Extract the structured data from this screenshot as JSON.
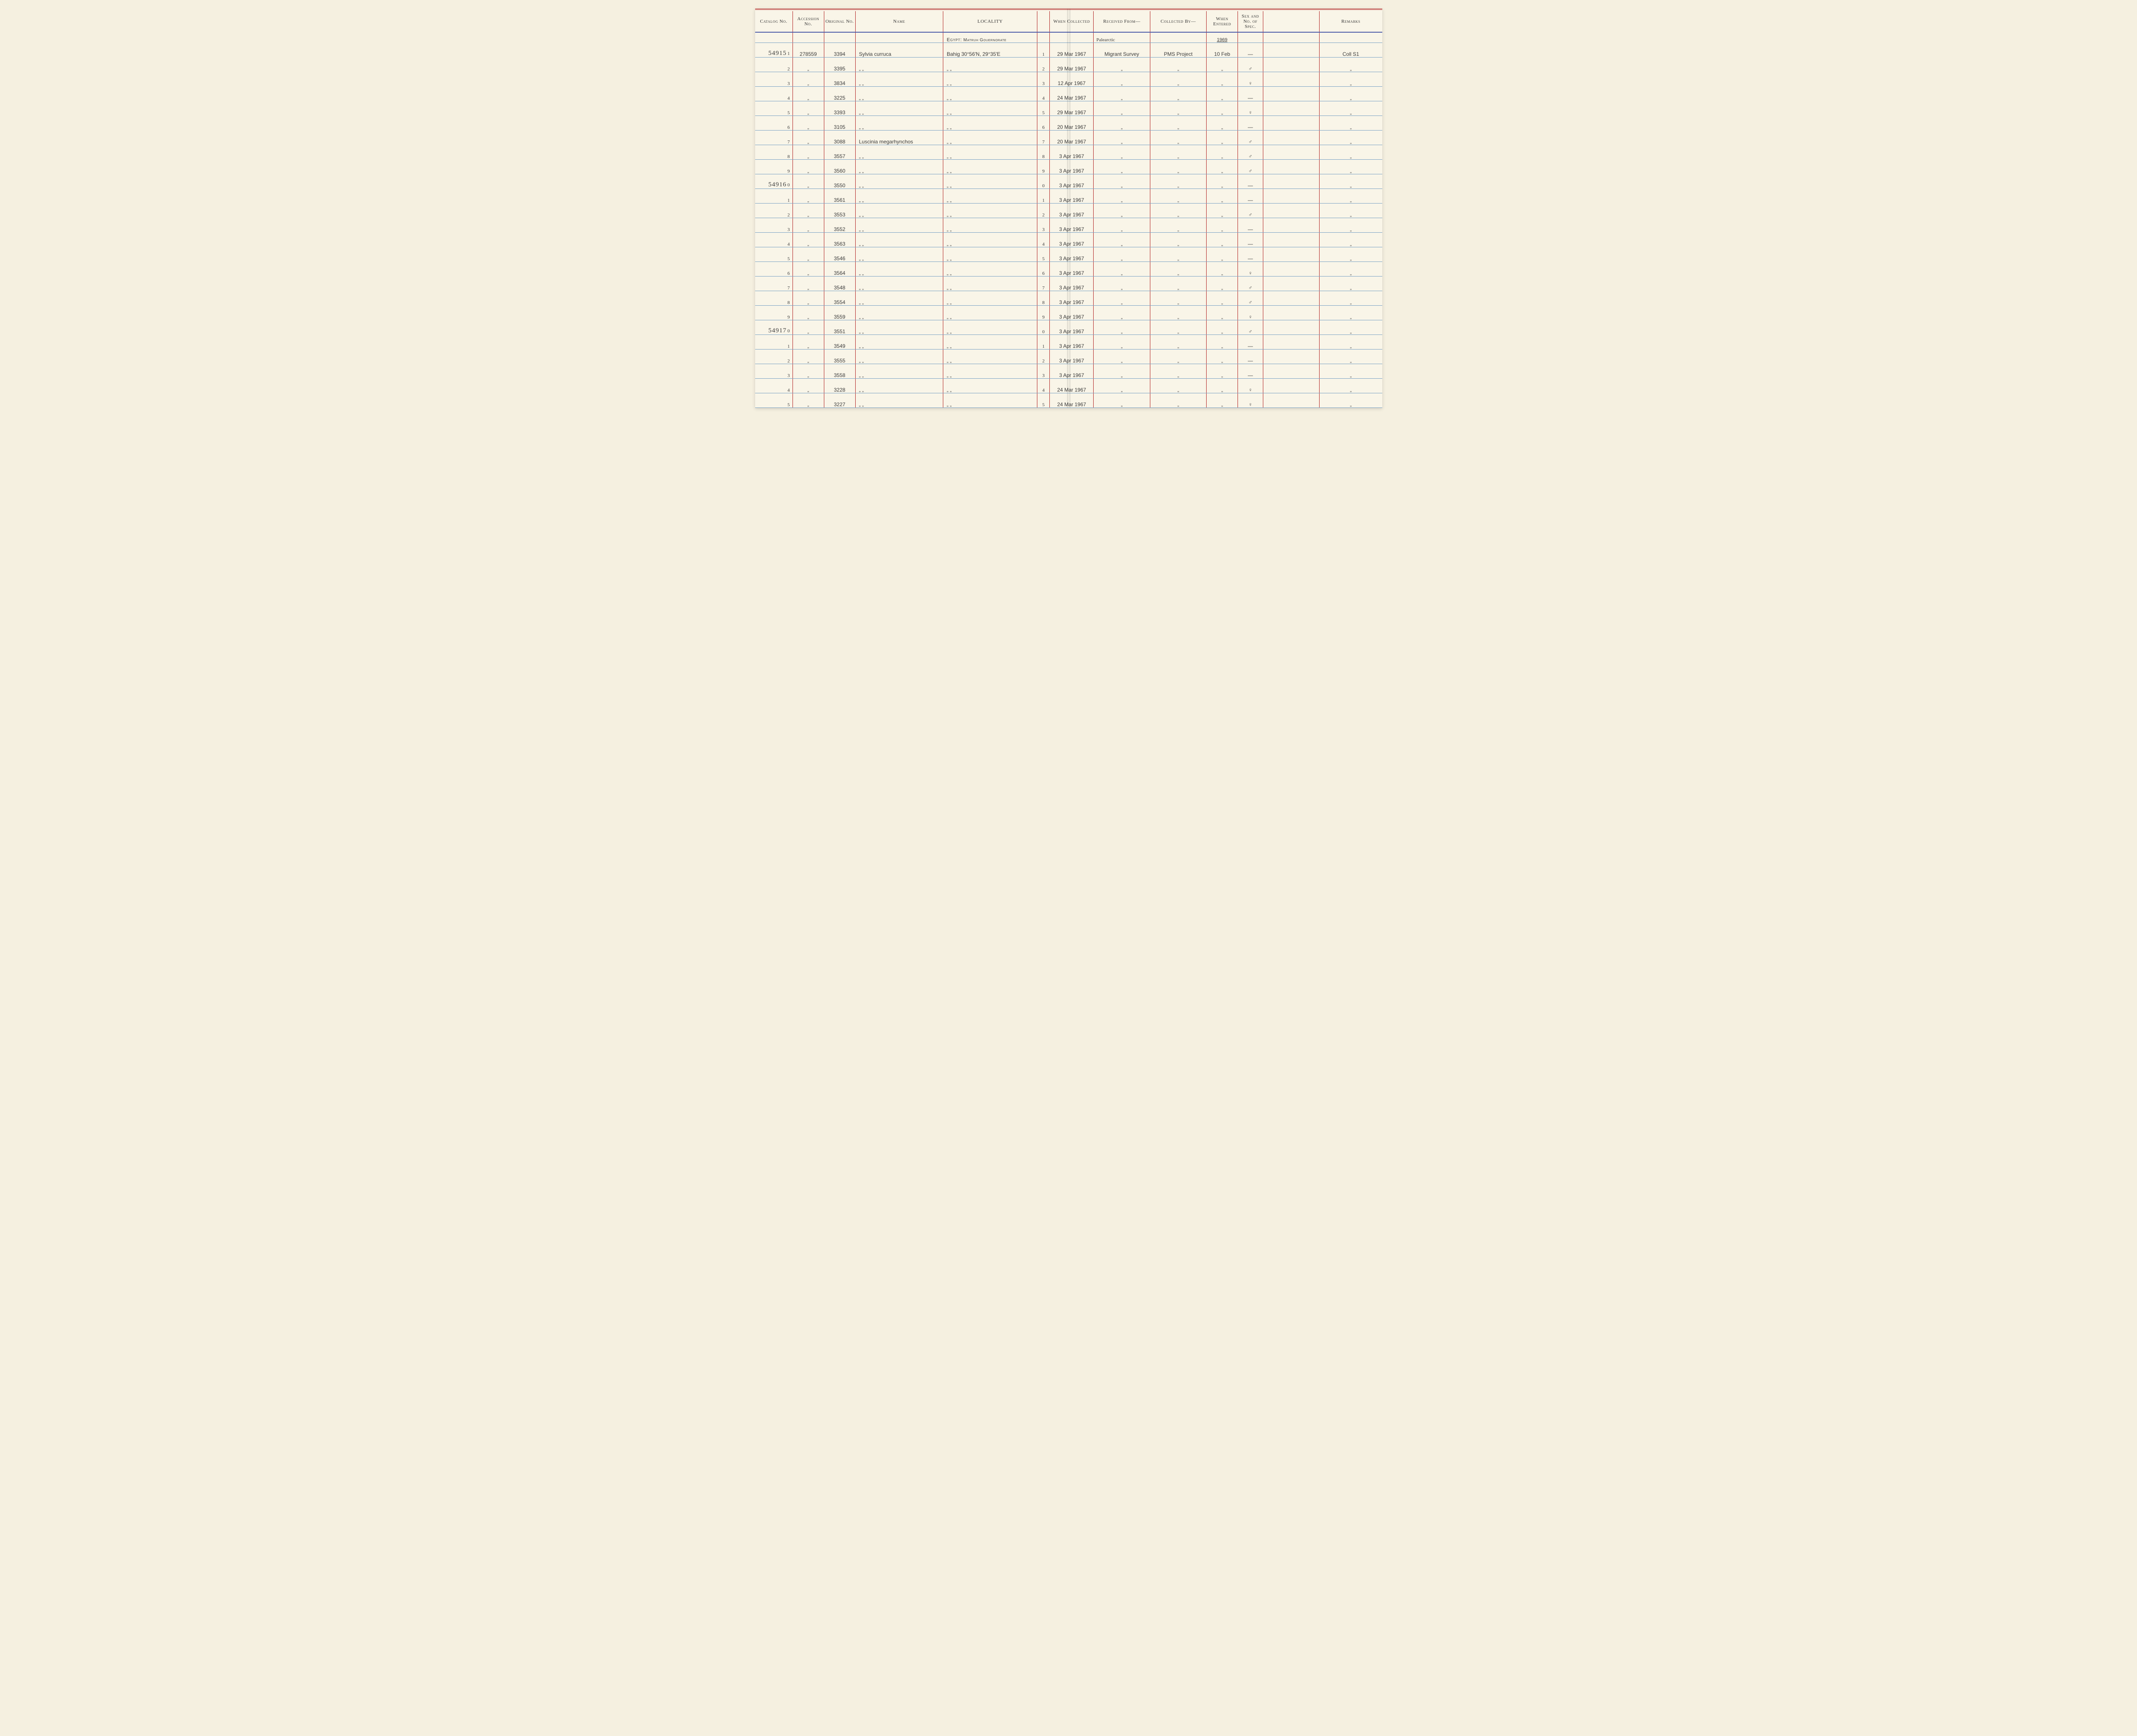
{
  "headers": {
    "catalog": "Catalog No.",
    "accession": "Accession No.",
    "original": "Original No.",
    "name": "Name",
    "locality": "LOCALITY",
    "collected": "When Collected",
    "received": "Received From—",
    "collectedby": "Collected By—",
    "entered": "When Entered",
    "sex": "Sex and No. of Spec.",
    "remarks": "Remarks"
  },
  "locality_header": {
    "country": "Egypt:",
    "region": "Matruh Gouernorate",
    "received_note": "Palearctic",
    "year": "1969"
  },
  "ditto": "„",
  "dash": "—",
  "rows": [
    {
      "catalog_major": "54915",
      "catalog_minor": "1",
      "accession": "278559",
      "original": "3394",
      "name": "Sylvia curruca",
      "locality": "Bahig 30°56'N, 29°35'E",
      "idx": "1",
      "collected": "29 Mar 1967",
      "received": "Migrant Survey",
      "collectedby": "PMS Project",
      "entered": "10 Feb",
      "sex": "—",
      "remarks": "Coll S1"
    },
    {
      "catalog_major": "",
      "catalog_minor": "2",
      "accession": "„",
      "original": "3395",
      "name": "„ „",
      "locality": "„ „",
      "idx": "2",
      "collected": "29 Mar 1967",
      "received": "„",
      "collectedby": "„",
      "entered": "„",
      "sex": "♂",
      "remarks": "„"
    },
    {
      "catalog_major": "",
      "catalog_minor": "3",
      "accession": "„",
      "original": "3834",
      "name": "„ „",
      "locality": "„ „",
      "idx": "3",
      "collected": "12 Apr 1967",
      "received": "„",
      "collectedby": "„",
      "entered": "„",
      "sex": "♀",
      "remarks": "„"
    },
    {
      "catalog_major": "",
      "catalog_minor": "4",
      "accession": "„",
      "original": "3225",
      "name": "„ „",
      "locality": "„ „",
      "idx": "4",
      "collected": "24 Mar 1967",
      "received": "„",
      "collectedby": "„",
      "entered": "„",
      "sex": "—",
      "remarks": "„"
    },
    {
      "catalog_major": "",
      "catalog_minor": "5",
      "accession": "„",
      "original": "3393",
      "name": "„ „",
      "locality": "„ „",
      "idx": "5",
      "collected": "29 Mar 1967",
      "received": "„",
      "collectedby": "„",
      "entered": "„",
      "sex": "♀",
      "remarks": "„"
    },
    {
      "catalog_major": "",
      "catalog_minor": "6",
      "accession": "„",
      "original": "3105",
      "name": "„ „",
      "locality": "„ „",
      "idx": "6",
      "collected": "20 Mar 1967",
      "received": "„",
      "collectedby": "„",
      "entered": "„",
      "sex": "—",
      "remarks": "„"
    },
    {
      "catalog_major": "",
      "catalog_minor": "7",
      "accession": "„",
      "original": "3088",
      "name": "Luscinia megarhynchos",
      "locality": "„ „",
      "idx": "7",
      "collected": "20 Mar 1967",
      "received": "„",
      "collectedby": "„",
      "entered": "„",
      "sex": "♂",
      "remarks": "„"
    },
    {
      "catalog_major": "",
      "catalog_minor": "8",
      "accession": "„",
      "original": "3557",
      "name": "„ „",
      "locality": "„ „",
      "idx": "8",
      "collected": "3 Apr 1967",
      "received": "„",
      "collectedby": "„",
      "entered": "„",
      "sex": "♂",
      "remarks": "„"
    },
    {
      "catalog_major": "",
      "catalog_minor": "9",
      "accession": "„",
      "original": "3560",
      "name": "„ „",
      "locality": "„ „",
      "idx": "9",
      "collected": "3 Apr 1967",
      "received": "„",
      "collectedby": "„",
      "entered": "„",
      "sex": "♂",
      "remarks": "„"
    },
    {
      "catalog_major": "54916",
      "catalog_minor": "0",
      "accession": "„",
      "original": "3550",
      "name": "„ „",
      "locality": "„ „",
      "idx": "0",
      "collected": "3 Apr 1967",
      "received": "„",
      "collectedby": "„",
      "entered": "„",
      "sex": "—",
      "remarks": "„"
    },
    {
      "catalog_major": "",
      "catalog_minor": "1",
      "accession": "„",
      "original": "3561",
      "name": "„ „",
      "locality": "„ „",
      "idx": "1",
      "collected": "3 Apr 1967",
      "received": "„",
      "collectedby": "„",
      "entered": "„",
      "sex": "—",
      "remarks": "„"
    },
    {
      "catalog_major": "",
      "catalog_minor": "2",
      "accession": "„",
      "original": "3553",
      "name": "„ „",
      "locality": "„ „",
      "idx": "2",
      "collected": "3 Apr 1967",
      "received": "„",
      "collectedby": "„",
      "entered": "„",
      "sex": "♂",
      "remarks": "„"
    },
    {
      "catalog_major": "",
      "catalog_minor": "3",
      "accession": "„",
      "original": "3552",
      "name": "„ „",
      "locality": "„ „",
      "idx": "3",
      "collected": "3 Apr 1967",
      "received": "„",
      "collectedby": "„",
      "entered": "„",
      "sex": "—",
      "remarks": "„"
    },
    {
      "catalog_major": "",
      "catalog_minor": "4",
      "accession": "„",
      "original": "3563",
      "name": "„ „",
      "locality": "„ „",
      "idx": "4",
      "collected": "3 Apr 1967",
      "received": "„",
      "collectedby": "„",
      "entered": "„",
      "sex": "—",
      "remarks": "„"
    },
    {
      "catalog_major": "",
      "catalog_minor": "5",
      "accession": "„",
      "original": "3546",
      "name": "„ „",
      "locality": "„ „",
      "idx": "5",
      "collected": "3 Apr 1967",
      "received": "„",
      "collectedby": "„",
      "entered": "„",
      "sex": "—",
      "remarks": "„"
    },
    {
      "catalog_major": "",
      "catalog_minor": "6",
      "accession": "„",
      "original": "3564",
      "name": "„ „",
      "locality": "„ „",
      "idx": "6",
      "collected": "3 Apr 1967",
      "received": "„",
      "collectedby": "„",
      "entered": "„",
      "sex": "♀",
      "remarks": "„"
    },
    {
      "catalog_major": "",
      "catalog_minor": "7",
      "accession": "„",
      "original": "3548",
      "name": "„ „",
      "locality": "„ „",
      "idx": "7",
      "collected": "3 Apr 1967",
      "received": "„",
      "collectedby": "„",
      "entered": "„",
      "sex": "♂",
      "remarks": "„"
    },
    {
      "catalog_major": "",
      "catalog_minor": "8",
      "accession": "„",
      "original": "3554",
      "name": "„ „",
      "locality": "„ „",
      "idx": "8",
      "collected": "3 Apr 1967",
      "received": "„",
      "collectedby": "„",
      "entered": "„",
      "sex": "♂",
      "remarks": "„"
    },
    {
      "catalog_major": "",
      "catalog_minor": "9",
      "accession": "„",
      "original": "3559",
      "name": "„ „",
      "locality": "„ „",
      "idx": "9",
      "collected": "3 Apr 1967",
      "received": "„",
      "collectedby": "„",
      "entered": "„",
      "sex": "♀",
      "remarks": "„"
    },
    {
      "catalog_major": "54917",
      "catalog_minor": "0",
      "accession": "„",
      "original": "3551",
      "name": "„ „",
      "locality": "„ „",
      "idx": "0",
      "collected": "3 Apr 1967",
      "received": "„",
      "collectedby": "„",
      "entered": "„",
      "sex": "♂",
      "remarks": "„"
    },
    {
      "catalog_major": "",
      "catalog_minor": "1",
      "accession": "„",
      "original": "3549",
      "name": "„ „",
      "locality": "„ „",
      "idx": "1",
      "collected": "3 Apr 1967",
      "received": "„",
      "collectedby": "„",
      "entered": "„",
      "sex": "—",
      "remarks": "„"
    },
    {
      "catalog_major": "",
      "catalog_minor": "2",
      "accession": "„",
      "original": "3555",
      "name": "„ „",
      "locality": "„ „",
      "idx": "2",
      "collected": "3 Apr 1967",
      "received": "„",
      "collectedby": "„",
      "entered": "„",
      "sex": "—",
      "remarks": "„"
    },
    {
      "catalog_major": "",
      "catalog_minor": "3",
      "accession": "„",
      "original": "3558",
      "name": "„ „",
      "locality": "„ „",
      "idx": "3",
      "collected": "3 Apr 1967",
      "received": "„",
      "collectedby": "„",
      "entered": "„",
      "sex": "—",
      "remarks": "„"
    },
    {
      "catalog_major": "",
      "catalog_minor": "4",
      "accession": "„",
      "original": "3228",
      "name": "„ „",
      "locality": "„ „",
      "idx": "4",
      "collected": "24 Mar 1967",
      "received": "„",
      "collectedby": "„",
      "entered": "„",
      "sex": "♀",
      "remarks": "„"
    },
    {
      "catalog_major": "",
      "catalog_minor": "5",
      "accession": "„",
      "original": "3227",
      "name": "„ „",
      "locality": "„ „",
      "idx": "5",
      "collected": "24 Mar 1967",
      "received": "„",
      "collectedby": "„",
      "entered": "„",
      "sex": "♀",
      "remarks": "„"
    }
  ]
}
